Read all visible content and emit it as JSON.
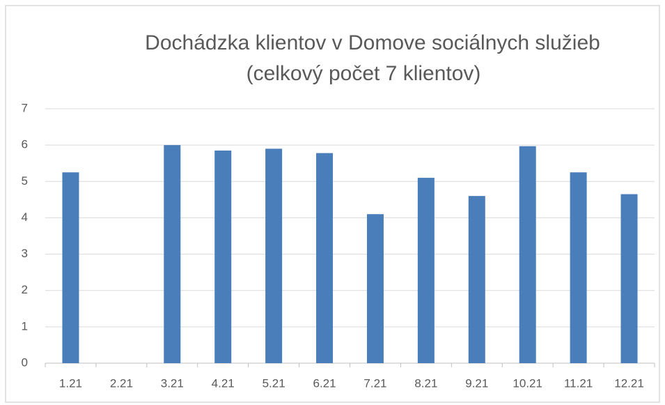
{
  "chart_data": {
    "type": "bar",
    "title": [
      "Dochádzka klientov v Domove sociálnych služieb",
      "(celkový počet 7 klientov)"
    ],
    "categories": [
      "1.21",
      "2.21",
      "3.21",
      "4.21",
      "5.21",
      "6.21",
      "7.21",
      "8.21",
      "9.21",
      "10.21",
      "11.21",
      "12.21"
    ],
    "values": [
      5.25,
      0,
      6.0,
      5.85,
      5.9,
      5.78,
      4.1,
      5.1,
      4.6,
      5.97,
      5.25,
      4.65
    ],
    "color": "#4a7ebb",
    "ylim": [
      0,
      7
    ],
    "yticks": [
      0,
      1,
      2,
      3,
      4,
      5,
      6,
      7
    ],
    "grid": true
  }
}
